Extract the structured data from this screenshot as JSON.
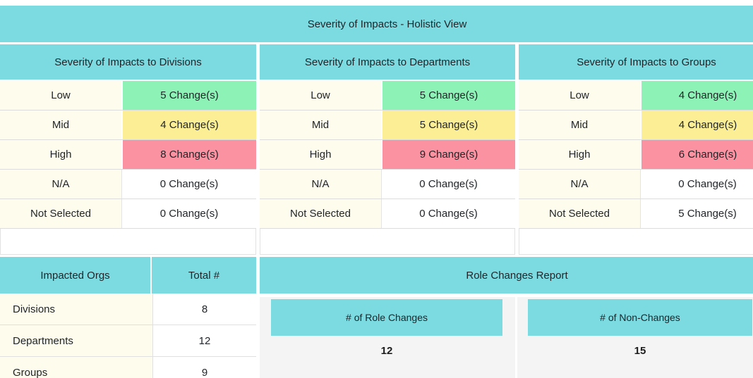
{
  "colors": {
    "teal": "#7BDBE1",
    "cream": "#FEFCEC",
    "green": "#8DF2B6",
    "yellow": "#FBEE94",
    "red": "#FA92A1",
    "panel": "#F4F4F5"
  },
  "main_header": "Severity of Impacts - Holistic View",
  "severity_tables": [
    {
      "title": "Severity of Impacts to Divisions",
      "rows": [
        {
          "label": "Low",
          "value": "5 Change(s)"
        },
        {
          "label": "Mid",
          "value": "4 Change(s)"
        },
        {
          "label": "High",
          "value": "8 Change(s)"
        },
        {
          "label": "N/A",
          "value": "0 Change(s)"
        },
        {
          "label": "Not Selected",
          "value": "0 Change(s)"
        }
      ]
    },
    {
      "title": "Severity of Impacts to Departments",
      "rows": [
        {
          "label": "Low",
          "value": "5 Change(s)"
        },
        {
          "label": "Mid",
          "value": "5 Change(s)"
        },
        {
          "label": "High",
          "value": "9 Change(s)"
        },
        {
          "label": "N/A",
          "value": "0 Change(s)"
        },
        {
          "label": "Not Selected",
          "value": "0 Change(s)"
        }
      ]
    },
    {
      "title": "Severity of Impacts to Groups",
      "rows": [
        {
          "label": "Low",
          "value": "4 Change(s)"
        },
        {
          "label": "Mid",
          "value": "4 Change(s)"
        },
        {
          "label": "High",
          "value": "6 Change(s)"
        },
        {
          "label": "N/A",
          "value": "0 Change(s)"
        },
        {
          "label": "Not Selected",
          "value": "5 Change(s)"
        }
      ]
    }
  ],
  "impacted_orgs": {
    "headers": [
      "Impacted Orgs",
      "Total #"
    ],
    "rows": [
      {
        "label": "Divisions",
        "value": "8"
      },
      {
        "label": "Departments",
        "value": "12"
      },
      {
        "label": "Groups",
        "value": "9"
      }
    ]
  },
  "role_changes": {
    "title": "Role Changes Report",
    "cards": [
      {
        "title": "# of Role Changes",
        "value": "12"
      },
      {
        "title": "# of Non-Changes",
        "value": "15"
      }
    ]
  }
}
